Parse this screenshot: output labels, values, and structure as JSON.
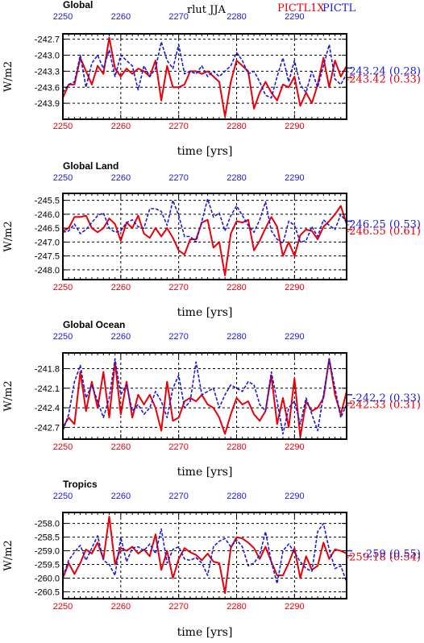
{
  "header": {
    "variable": "rlut",
    "season": "JJA",
    "experiment_red": "PICTL1X",
    "experiment_blue": "PICTL"
  },
  "colors": {
    "red": "#e8000b",
    "blue": "#1a1adc",
    "black": "#000000"
  },
  "chart_data": [
    {
      "type": "line",
      "title": "Global",
      "ylabel": "W/m2",
      "xlabel": "time [yrs]",
      "x_red_ticks": [
        "2250",
        "2260",
        "2270",
        "2280",
        "2290"
      ],
      "x_blue_ticks": [
        "2250",
        "2260",
        "2270",
        "2280",
        "2290"
      ],
      "xlim": [
        2250,
        2299
      ],
      "ylim": [
        -244.2,
        -242.6
      ],
      "yticks": [
        -242.7,
        -243.0,
        -243.3,
        -243.6,
        -243.9
      ],
      "ytick_labels": [
        "-242.7",
        "-243.0",
        "-243.3",
        "-243.6",
        "-243.9"
      ],
      "x": [
        2250,
        2251,
        2252,
        2253,
        2254,
        2255,
        2256,
        2257,
        2258,
        2259,
        2260,
        2261,
        2262,
        2263,
        2264,
        2265,
        2266,
        2267,
        2268,
        2269,
        2270,
        2271,
        2272,
        2273,
        2274,
        2275,
        2276,
        2277,
        2278,
        2279,
        2280,
        2281,
        2282,
        2283,
        2284,
        2285,
        2286,
        2287,
        2288,
        2289,
        2290,
        2291,
        2292,
        2293,
        2294,
        2295,
        2296,
        2297,
        2298,
        2299
      ],
      "series": [
        {
          "name": "PICTL1X",
          "values": [
            -243.8,
            -243.55,
            -243.55,
            -243.05,
            -243.3,
            -243.55,
            -243.2,
            -243.35,
            -242.67,
            -243.25,
            -243.4,
            -243.25,
            -243.35,
            -243.25,
            -243.3,
            -243.4,
            -243.1,
            -243.85,
            -243.2,
            -243.6,
            -243.6,
            -243.55,
            -243.3,
            -243.3,
            -243.35,
            -243.3,
            -243.4,
            -243.5,
            -244.15,
            -243.5,
            -243.1,
            -243.2,
            -243.3,
            -244.0,
            -243.7,
            -243.5,
            -243.7,
            -243.85,
            -243.55,
            -243.6,
            -243.4,
            -243.95,
            -243.7,
            -243.9,
            -243.55,
            -243.05,
            -243.6,
            -243.1,
            -243.4,
            -243.2
          ]
        },
        {
          "name": "PICTL",
          "values": [
            -243.7,
            -243.55,
            -243.5,
            -243.0,
            -243.6,
            -243.15,
            -243.0,
            -243.25,
            -242.9,
            -243.4,
            -243.0,
            -243.1,
            -243.2,
            -243.65,
            -243.2,
            -243.4,
            -243.25,
            -242.75,
            -243.1,
            -243.25,
            -242.8,
            -243.35,
            -243.3,
            -243.35,
            -243.2,
            -243.4,
            -243.3,
            -243.4,
            -243.3,
            -243.2,
            -242.95,
            -243.1,
            -243.35,
            -243.3,
            -243.5,
            -243.75,
            -243.8,
            -243.4,
            -243.05,
            -243.5,
            -243.1,
            -243.55,
            -243.7,
            -243.3,
            -243.6,
            -243.2,
            -242.8,
            -243.45,
            -243.55,
            -243.35
          ]
        }
      ],
      "annotations": [
        {
          "series": "PICTL1X",
          "value": -243.42,
          "text": "-243.42 (0.33)"
        },
        {
          "series": "PICTL",
          "value": -243.24,
          "text": "-243.24 (0.28)"
        }
      ]
    },
    {
      "type": "line",
      "title": "Global Land",
      "ylabel": "W/m2",
      "xlabel": "time [yrs]",
      "x_red_ticks": [
        "2250",
        "2260",
        "2270",
        "2280",
        "2290"
      ],
      "x_blue_ticks": [
        "2250",
        "2260",
        "2270",
        "2280",
        "2290"
      ],
      "xlim": [
        2250,
        2299
      ],
      "ylim": [
        -248.35,
        -245.25
      ],
      "yticks": [
        -245.5,
        -246.0,
        -246.5,
        -247.0,
        -247.5,
        -248.0
      ],
      "ytick_labels": [
        "-245.5",
        "-246.0",
        "-246.5",
        "-247.0",
        "-247.5",
        "-248.0"
      ],
      "x": [
        2250,
        2251,
        2252,
        2253,
        2254,
        2255,
        2256,
        2257,
        2258,
        2259,
        2260,
        2261,
        2262,
        2263,
        2264,
        2265,
        2266,
        2267,
        2268,
        2269,
        2270,
        2271,
        2272,
        2273,
        2274,
        2275,
        2276,
        2277,
        2278,
        2279,
        2280,
        2281,
        2282,
        2283,
        2284,
        2285,
        2286,
        2287,
        2288,
        2289,
        2290,
        2291,
        2292,
        2293,
        2294,
        2295,
        2296,
        2297,
        2298,
        2299
      ],
      "series": [
        {
          "name": "PICTL1X",
          "values": [
            -246.6,
            -246.5,
            -246.1,
            -246.1,
            -246.05,
            -246.5,
            -246.65,
            -246.5,
            -246.15,
            -246.35,
            -246.95,
            -246.3,
            -246.5,
            -246.05,
            -246.7,
            -246.85,
            -246.5,
            -246.8,
            -246.5,
            -246.85,
            -247.3,
            -247.45,
            -246.9,
            -246.9,
            -246.3,
            -246.2,
            -247.2,
            -247.0,
            -248.2,
            -246.7,
            -246.25,
            -246.3,
            -246.2,
            -247.3,
            -246.95,
            -246.5,
            -246.1,
            -246.45,
            -247.5,
            -247.0,
            -247.5,
            -246.75,
            -246.55,
            -246.6,
            -246.9,
            -246.45,
            -246.25,
            -246.0,
            -245.7,
            -246.35
          ]
        },
        {
          "name": "PICTL",
          "values": [
            -246.65,
            -246.6,
            -246.35,
            -246.7,
            -246.55,
            -246.3,
            -246.05,
            -245.95,
            -246.5,
            -246.65,
            -246.6,
            -246.3,
            -246.2,
            -246.45,
            -246.5,
            -245.8,
            -245.8,
            -245.9,
            -246.4,
            -245.5,
            -246.05,
            -246.8,
            -246.8,
            -247.0,
            -246.25,
            -245.45,
            -246.1,
            -245.95,
            -246.6,
            -246.05,
            -245.7,
            -246.05,
            -246.4,
            -246.65,
            -246.2,
            -245.55,
            -246.6,
            -246.9,
            -247.05,
            -246.25,
            -246.4,
            -247.0,
            -246.95,
            -246.45,
            -246.8,
            -246.2,
            -246.4,
            -246.55,
            -246.0,
            -246.3
          ]
        }
      ],
      "annotations": [
        {
          "series": "PICTL1X",
          "value": -246.55,
          "text": "-246.55 (0.61)"
        },
        {
          "series": "PICTL",
          "value": -246.25,
          "text": "-246.25 (0.53)"
        }
      ]
    },
    {
      "type": "line",
      "title": "Global Ocean",
      "ylabel": "W/m2",
      "xlabel": "time [yrs]",
      "x_red_ticks": [
        "2250",
        "2260",
        "2270",
        "2280",
        "2290"
      ],
      "x_blue_ticks": [
        "2250",
        "2260",
        "2270",
        "2280",
        "2290"
      ],
      "xlim": [
        2250,
        2299
      ],
      "ylim": [
        -242.88,
        -241.56
      ],
      "yticks": [
        -241.8,
        -242.1,
        -242.4,
        -242.7
      ],
      "ytick_labels": [
        "-241.8",
        "-242.1",
        "-242.4",
        "-242.7"
      ],
      "x": [
        2250,
        2251,
        2252,
        2253,
        2254,
        2255,
        2256,
        2257,
        2258,
        2259,
        2260,
        2261,
        2262,
        2263,
        2264,
        2265,
        2266,
        2267,
        2268,
        2269,
        2270,
        2271,
        2272,
        2273,
        2274,
        2275,
        2276,
        2277,
        2278,
        2279,
        2280,
        2281,
        2282,
        2283,
        2284,
        2285,
        2286,
        2287,
        2288,
        2289,
        2290,
        2291,
        2292,
        2293,
        2294,
        2295,
        2296,
        2297,
        2298,
        2299
      ],
      "series": [
        {
          "name": "PICTL1X",
          "values": [
            -242.7,
            -242.55,
            -242.65,
            -241.85,
            -242.45,
            -242.0,
            -242.4,
            -241.85,
            -242.55,
            -241.7,
            -242.5,
            -242.0,
            -242.55,
            -242.2,
            -242.35,
            -242.2,
            -242.4,
            -242.75,
            -242.0,
            -242.6,
            -242.55,
            -242.3,
            -242.25,
            -242.3,
            -242.2,
            -242.35,
            -242.4,
            -242.55,
            -242.8,
            -242.5,
            -242.25,
            -242.35,
            -242.3,
            -242.5,
            -242.6,
            -242.45,
            -241.9,
            -242.65,
            -242.25,
            -242.7,
            -241.95,
            -242.85,
            -242.3,
            -242.45,
            -242.4,
            -242.25,
            -241.65,
            -242.2,
            -242.5,
            -242.15
          ]
        },
        {
          "name": "PICTL",
          "values": [
            -242.75,
            -242.5,
            -242.0,
            -241.75,
            -242.25,
            -242.05,
            -242.3,
            -242.55,
            -242.25,
            -241.65,
            -242.2,
            -242.05,
            -242.45,
            -242.35,
            -242.5,
            -242.4,
            -242.15,
            -242.3,
            -242.55,
            -242.1,
            -241.9,
            -242.4,
            -242.3,
            -241.7,
            -242.2,
            -242.15,
            -242.1,
            -242.4,
            -242.2,
            -242.05,
            -242.1,
            -242.15,
            -242.0,
            -242.05,
            -242.35,
            -242.45,
            -241.85,
            -242.3,
            -242.8,
            -242.4,
            -242.3,
            -242.65,
            -242.25,
            -242.5,
            -242.75,
            -242.2,
            -241.65,
            -242.1,
            -242.55,
            -242.35
          ]
        }
      ],
      "annotations": [
        {
          "series": "PICTL1X",
          "value": -242.33,
          "text": "-242.33 (0.31)"
        },
        {
          "series": "PICTL",
          "value": -242.2,
          "text": "-242.2 (0.33)"
        }
      ]
    },
    {
      "type": "line",
      "title": "Tropics",
      "ylabel": "W/m2",
      "xlabel": "time [yrs]",
      "x_red_ticks": [
        "2250",
        "2260",
        "2270",
        "2280",
        "2290"
      ],
      "x_blue_ticks": [
        "2250",
        "2260",
        "2270",
        "2280",
        "2290"
      ],
      "xlim": [
        2250,
        2299
      ],
      "ylim": [
        -260.75,
        -257.6
      ],
      "yticks": [
        -258.0,
        -258.5,
        -259.0,
        -259.5,
        -260.0,
        -260.5
      ],
      "ytick_labels": [
        "-258.0",
        "-258.5",
        "-259.0",
        "-259.5",
        "-260.0",
        "-260.5"
      ],
      "x": [
        2250,
        2251,
        2252,
        2253,
        2254,
        2255,
        2256,
        2257,
        2258,
        2259,
        2260,
        2261,
        2262,
        2263,
        2264,
        2265,
        2266,
        2267,
        2268,
        2269,
        2270,
        2271,
        2272,
        2273,
        2274,
        2275,
        2276,
        2277,
        2278,
        2279,
        2280,
        2281,
        2282,
        2283,
        2284,
        2285,
        2286,
        2287,
        2288,
        2289,
        2290,
        2291,
        2292,
        2293,
        2294,
        2295,
        2296,
        2297,
        2298,
        2299
      ],
      "series": [
        {
          "name": "PICTL1X",
          "values": [
            -260.0,
            -259.45,
            -259.85,
            -259.45,
            -258.95,
            -259.1,
            -258.7,
            -259.3,
            -257.75,
            -259.5,
            -258.9,
            -259.0,
            -258.85,
            -259.1,
            -258.95,
            -259.2,
            -258.4,
            -259.7,
            -259.0,
            -260.0,
            -259.3,
            -258.9,
            -259.05,
            -259.15,
            -259.35,
            -259.1,
            -259.4,
            -259.45,
            -260.55,
            -258.9,
            -258.5,
            -258.55,
            -258.7,
            -258.9,
            -259.3,
            -258.85,
            -259.4,
            -259.9,
            -259.9,
            -259.45,
            -258.9,
            -260.0,
            -259.2,
            -259.7,
            -259.55,
            -258.7,
            -259.3,
            -258.95,
            -259.0,
            -259.1
          ]
        },
        {
          "name": "PICTL",
          "values": [
            -259.95,
            -259.35,
            -259.05,
            -258.8,
            -259.35,
            -258.9,
            -258.45,
            -259.35,
            -259.5,
            -259.9,
            -258.5,
            -259.4,
            -258.9,
            -258.85,
            -259.0,
            -258.75,
            -259.1,
            -258.2,
            -259.45,
            -258.95,
            -258.85,
            -259.3,
            -259.35,
            -259.25,
            -259.45,
            -259.9,
            -258.85,
            -258.65,
            -258.55,
            -258.85,
            -258.6,
            -258.85,
            -259.55,
            -259.45,
            -259.15,
            -258.3,
            -259.4,
            -260.2,
            -259.0,
            -258.75,
            -259.05,
            -259.4,
            -259.65,
            -259.75,
            -258.3,
            -258.0,
            -258.95,
            -259.65,
            -259.55,
            -260.15
          ]
        }
      ],
      "annotations": [
        {
          "series": "PICTL1X",
          "value": -259.18,
          "text": "-259.18 (0.54)"
        },
        {
          "series": "PICTL",
          "value": -259,
          "text": "-259 (0.55)"
        }
      ]
    }
  ]
}
